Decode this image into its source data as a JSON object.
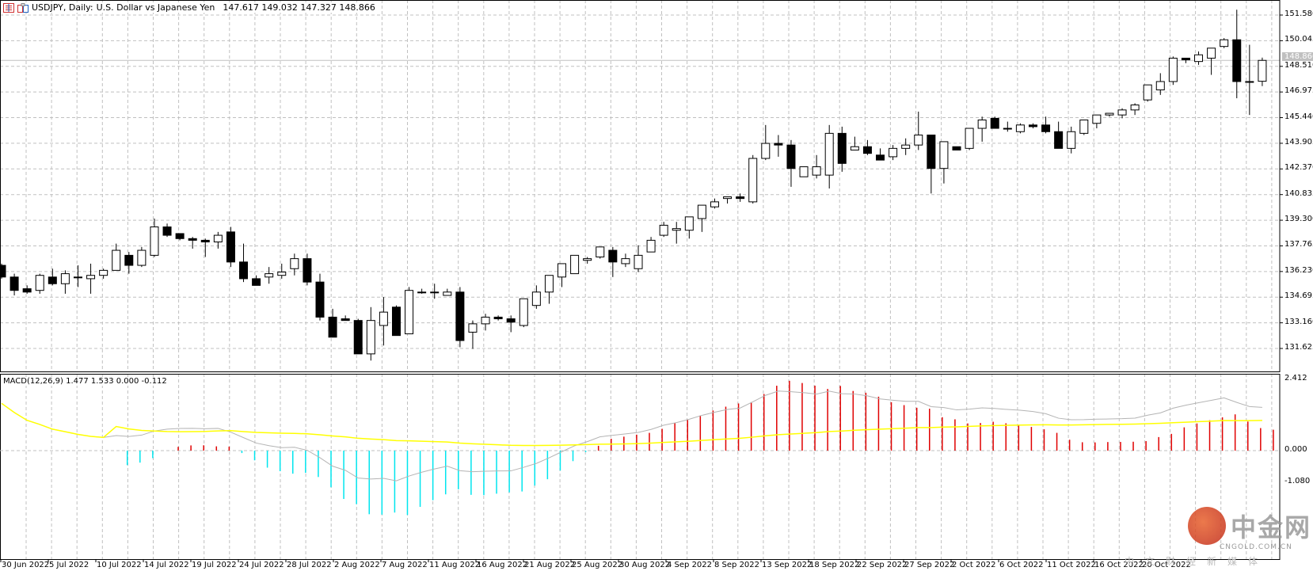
{
  "header": {
    "symbol": "USDJPY, Daily:",
    "description": "U.S. Dollar vs Japanese Yen",
    "ohlc": "147.617 149.032 147.327 148.866",
    "icons": [
      "bars-list-icon",
      "chart-template-icon"
    ]
  },
  "macd_header": {
    "label": "MACD(12,26,9) 1.477 1.533 0.000 -0.112"
  },
  "current_price": "148.866",
  "watermark": {
    "brand": "中金网",
    "url": "CNGOLD.COM.CN",
    "tagline": "中文财经新媒体"
  },
  "colors": {
    "bull_body": "#ffffff",
    "bear_body": "#000000",
    "grid": "#c0c0c0",
    "macd_line": "#b4b4b4",
    "signal_line": "#ffff00",
    "hist_pos": "#e00000",
    "hist_neg": "#00e5ee"
  },
  "chart_data": [
    {
      "type": "candlestick",
      "title": "USDJPY, Daily: U.S. Dollar vs Japanese Yen",
      "ylim": [
        130.9,
        152.4
      ],
      "y_ticks": [
        "151.580",
        "150.045",
        "148.510",
        "146.975",
        "145.440",
        "143.905",
        "142.370",
        "140.835",
        "139.300",
        "137.765",
        "136.230",
        "134.695",
        "133.160",
        "131.625"
      ],
      "x_ticks": [
        "30 Jun 2022",
        "5 Jul 2022",
        "10 Jul 2022",
        "14 Jul 2022",
        "19 Jul 2022",
        "24 Jul 2022",
        "28 Jul 2022",
        "2 Aug 2022",
        "7 Aug 2022",
        "11 Aug 2022",
        "16 Aug 2022",
        "21 Aug 2022",
        "25 Aug 2022",
        "30 Aug 2022",
        "4 Sep 2022",
        "8 Sep 2022",
        "13 Sep 2022",
        "18 Sep 2022",
        "22 Sep 2022",
        "27 Sep 2022",
        "2 Oct 2022",
        "6 Oct 2022",
        "11 Oct 2022",
        "16 Oct 2022",
        "20 Oct 2022"
      ],
      "grid": true,
      "last_ohlc": {
        "open": 147.617,
        "high": 149.032,
        "low": 147.327,
        "close": 148.866
      },
      "candles": [
        [
          136.6,
          136.7,
          135.8,
          135.9
        ],
        [
          135.9,
          136.1,
          134.8,
          135.1
        ],
        [
          135.2,
          135.4,
          134.9,
          135.0
        ],
        [
          135.1,
          136.1,
          134.9,
          136.0
        ],
        [
          135.9,
          136.4,
          135.4,
          135.5
        ],
        [
          135.5,
          136.3,
          134.9,
          136.1
        ],
        [
          135.9,
          136.6,
          135.3,
          135.9
        ],
        [
          135.8,
          136.7,
          134.9,
          136.0
        ],
        [
          136.0,
          136.4,
          135.8,
          136.3
        ],
        [
          136.3,
          137.9,
          136.3,
          137.5
        ],
        [
          137.2,
          137.4,
          136.1,
          136.6
        ],
        [
          136.6,
          137.7,
          136.5,
          137.5
        ],
        [
          137.2,
          139.4,
          137.1,
          138.9
        ],
        [
          138.9,
          139.1,
          138.3,
          138.4
        ],
        [
          138.5,
          138.5,
          138.1,
          138.2
        ],
        [
          138.2,
          138.3,
          137.6,
          138.1
        ],
        [
          138.1,
          138.2,
          137.1,
          138.0
        ],
        [
          138.0,
          138.6,
          137.6,
          138.4
        ],
        [
          138.6,
          138.9,
          136.5,
          136.8
        ],
        [
          136.8,
          137.9,
          135.6,
          135.8
        ],
        [
          135.8,
          136.0,
          135.4,
          135.4
        ],
        [
          135.9,
          136.5,
          135.5,
          136.1
        ],
        [
          136.0,
          136.7,
          135.8,
          136.2
        ],
        [
          136.4,
          137.3,
          136.0,
          137.0
        ],
        [
          137.0,
          137.3,
          135.4,
          135.6
        ],
        [
          135.6,
          136.1,
          133.3,
          133.5
        ],
        [
          133.5,
          134.0,
          132.4,
          132.3
        ],
        [
          133.4,
          133.6,
          133.3,
          133.3
        ],
        [
          133.3,
          133.4,
          131.3,
          131.3
        ],
        [
          131.3,
          134.1,
          130.9,
          133.3
        ],
        [
          133.0,
          134.7,
          131.8,
          133.8
        ],
        [
          134.1,
          134.2,
          132.6,
          132.4
        ],
        [
          132.5,
          135.3,
          132.5,
          135.1
        ],
        [
          135.0,
          135.2,
          134.9,
          135.0
        ],
        [
          135.0,
          135.5,
          134.6,
          135.0
        ],
        [
          134.8,
          135.2,
          134.8,
          135.0
        ],
        [
          135.0,
          135.3,
          131.7,
          132.1
        ],
        [
          132.6,
          133.3,
          131.6,
          133.1
        ],
        [
          133.1,
          133.7,
          132.7,
          133.5
        ],
        [
          133.5,
          133.6,
          133.3,
          133.4
        ],
        [
          133.4,
          133.6,
          132.6,
          133.2
        ],
        [
          133.0,
          134.6,
          132.9,
          134.6
        ],
        [
          134.2,
          135.4,
          134.0,
          135.0
        ],
        [
          135.0,
          135.8,
          134.3,
          136.0
        ],
        [
          135.9,
          136.7,
          135.3,
          136.7
        ],
        [
          136.1,
          137.1,
          136.1,
          137.2
        ],
        [
          136.9,
          137.1,
          136.7,
          137.0
        ],
        [
          137.1,
          137.5,
          137.0,
          137.7
        ],
        [
          137.5,
          137.7,
          135.9,
          136.8
        ],
        [
          136.7,
          137.3,
          136.5,
          137.0
        ],
        [
          136.4,
          137.8,
          136.2,
          137.2
        ],
        [
          137.4,
          138.3,
          137.4,
          138.1
        ],
        [
          138.4,
          139.2,
          138.3,
          139.0
        ],
        [
          138.7,
          139.2,
          137.9,
          138.8
        ],
        [
          138.7,
          139.4,
          138.2,
          139.5
        ],
        [
          139.4,
          139.7,
          138.6,
          140.2
        ],
        [
          140.1,
          140.6,
          140.0,
          140.4
        ],
        [
          140.6,
          140.6,
          140.3,
          140.7
        ],
        [
          140.7,
          140.9,
          140.4,
          140.6
        ],
        [
          140.4,
          143.2,
          140.3,
          143.0
        ],
        [
          143.0,
          145.0,
          142.9,
          143.9
        ],
        [
          143.9,
          144.4,
          143.1,
          143.8
        ],
        [
          143.8,
          144.1,
          141.3,
          142.4
        ],
        [
          141.9,
          142.3,
          141.9,
          142.5
        ],
        [
          142.0,
          143.2,
          141.8,
          142.5
        ],
        [
          142.0,
          145.0,
          141.2,
          144.5
        ],
        [
          144.5,
          144.9,
          142.2,
          142.7
        ],
        [
          143.5,
          144.3,
          143.5,
          143.7
        ],
        [
          143.7,
          144.1,
          143.2,
          143.3
        ],
        [
          143.2,
          143.6,
          142.9,
          142.9
        ],
        [
          143.1,
          143.8,
          142.9,
          143.6
        ],
        [
          143.6,
          144.2,
          143.2,
          143.8
        ],
        [
          143.8,
          145.8,
          143.5,
          144.4
        ],
        [
          144.4,
          144.4,
          140.9,
          142.4
        ],
        [
          142.4,
          144.0,
          141.5,
          144.0
        ],
        [
          143.7,
          143.7,
          143.6,
          143.5
        ],
        [
          143.6,
          144.8,
          143.5,
          144.8
        ],
        [
          144.8,
          145.5,
          144.0,
          145.3
        ],
        [
          145.4,
          145.5,
          144.8,
          144.8
        ],
        [
          144.8,
          145.2,
          144.6,
          144.8
        ],
        [
          144.6,
          145.1,
          144.5,
          145.0
        ],
        [
          145.0,
          145.1,
          144.8,
          144.9
        ],
        [
          145.0,
          145.5,
          144.5,
          144.6
        ],
        [
          144.6,
          145.2,
          143.8,
          143.6
        ],
        [
          143.6,
          144.9,
          143.3,
          144.6
        ],
        [
          144.5,
          145.3,
          144.4,
          145.3
        ],
        [
          145.1,
          145.6,
          144.8,
          145.6
        ],
        [
          145.6,
          145.7,
          145.5,
          145.7
        ],
        [
          145.6,
          146.0,
          145.4,
          145.9
        ],
        [
          145.9,
          146.3,
          145.6,
          146.2
        ],
        [
          146.5,
          147.4,
          146.4,
          147.4
        ],
        [
          147.1,
          148.1,
          146.8,
          147.6
        ],
        [
          147.6,
          149.1,
          147.4,
          149.0
        ],
        [
          149.0,
          149.0,
          148.7,
          148.9
        ],
        [
          148.8,
          149.4,
          148.6,
          149.2
        ],
        [
          149.0,
          149.6,
          148.0,
          149.6
        ],
        [
          149.7,
          150.2,
          149.6,
          150.1
        ],
        [
          150.1,
          151.9,
          146.6,
          147.6
        ],
        [
          147.6,
          149.8,
          145.6,
          147.6
        ],
        [
          147.617,
          149.032,
          147.327,
          148.866
        ]
      ]
    },
    {
      "type": "macd",
      "title": "MACD(12,26,9)",
      "values": {
        "macd": 1.477,
        "signal": 1.533,
        "hist_a": 0.0,
        "hist_b": -0.112
      },
      "ylim": [
        -1.08,
        2.412
      ],
      "y_ticks": [
        "2.412",
        "0.000",
        "-1.080"
      ]
    }
  ]
}
